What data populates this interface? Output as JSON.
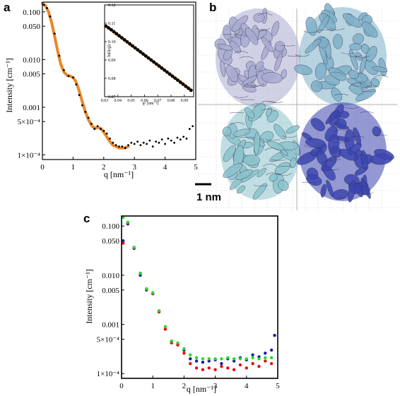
{
  "panels": {
    "a": {
      "letter": "a",
      "chart_data": {
        "type": "scatter",
        "title": "",
        "xlabel": "q [nm⁻¹]",
        "ylabel": "Intensity [cm⁻¹]",
        "xlim": [
          0,
          5
        ],
        "ylim": [
          8e-05,
          0.16
        ],
        "yscale": "log",
        "xticks": [
          {
            "value": 0,
            "label": "0"
          },
          {
            "value": 1,
            "label": "1"
          },
          {
            "value": 2,
            "label": "2"
          },
          {
            "value": 3,
            "label": "3"
          },
          {
            "value": 4,
            "label": "4"
          },
          {
            "value": 5,
            "label": "5"
          }
        ],
        "yticks": [
          {
            "value": 0.1,
            "label": "0.100"
          },
          {
            "value": 0.05,
            "label": "0.050"
          },
          {
            "value": 0.01,
            "label": "0.010"
          },
          {
            "value": 0.005,
            "label": "0.005"
          },
          {
            "value": 0.001,
            "label": "0.001"
          },
          {
            "value": 0.0005,
            "label": "5×10⁻⁴"
          },
          {
            "value": 0.0001,
            "label": "1×10⁻⁴"
          }
        ],
        "series": [
          {
            "kind": "points",
            "color": "#000000",
            "x": [
              0.05,
              0.15,
              0.25,
              0.4,
              0.55,
              0.7,
              0.85,
              1.0,
              1.1,
              1.2,
              1.3,
              1.4,
              1.5,
              1.6,
              1.7,
              1.8,
              1.9,
              2.0,
              2.1,
              2.2,
              2.3,
              2.4,
              2.5,
              2.6,
              2.7,
              2.8,
              2.9,
              3.0,
              3.1,
              3.2,
              3.3,
              3.4,
              3.5,
              3.6,
              3.7,
              3.8,
              3.9,
              4.0,
              4.1,
              4.2,
              4.3,
              4.4,
              4.5,
              4.6,
              4.7,
              4.8,
              4.9
            ],
            "y": [
              0.14,
              0.12,
              0.08,
              0.035,
              0.012,
              0.006,
              0.0045,
              0.0042,
              0.003,
              0.0018,
              0.0011,
              0.0008,
              0.0006,
              0.00045,
              0.00035,
              0.0004,
              0.00035,
              0.00032,
              0.00028,
              0.00022,
              0.00018,
              0.00016,
              0.00015,
              0.00015,
              0.00014,
              0.00016,
              0.00018,
              0.00017,
              0.00019,
              0.00016,
              0.00018,
              0.00017,
              0.0002,
              0.00015,
              0.00019,
              0.00018,
              0.00021,
              0.00017,
              0.00022,
              0.0002,
              0.00018,
              0.00023,
              0.00021,
              0.00024,
              0.00022,
              0.00035,
              0.0004
            ]
          },
          {
            "kind": "fit",
            "color": "#e8862a",
            "x": [
              0.0,
              0.1,
              0.2,
              0.3,
              0.4,
              0.5,
              0.6,
              0.7,
              0.8,
              0.9,
              1.0,
              1.1,
              1.2,
              1.3,
              1.4,
              1.5,
              1.6,
              1.7,
              1.8,
              1.9,
              2.0,
              2.1,
              2.2,
              2.3,
              2.4,
              2.5,
              2.6,
              2.7,
              2.8
            ],
            "y": [
              0.15,
              0.135,
              0.1,
              0.06,
              0.03,
              0.015,
              0.008,
              0.0055,
              0.0047,
              0.0045,
              0.0042,
              0.0034,
              0.0022,
              0.0013,
              0.0008,
              0.00055,
              0.00042,
              0.00036,
              0.00038,
              0.00036,
              0.0003,
              0.00024,
              0.00019,
              0.00016,
              0.00015,
              0.00014,
              0.00014,
              0.00014,
              0.00015
            ]
          }
        ]
      },
      "inset": {
        "chart_data": {
          "type": "scatter",
          "title": "",
          "xlabel": "q² [nm⁻²]",
          "ylabel": "ln(I(q))",
          "xlim": [
            0.03,
            0.097
          ],
          "ylim": [
            0.07,
            0.12
          ],
          "xticks": [
            {
              "value": 0.03,
              "label": "0.03"
            },
            {
              "value": 0.04,
              "label": "0.04"
            },
            {
              "value": 0.05,
              "label": "0.05"
            },
            {
              "value": 0.06,
              "label": "0.06"
            },
            {
              "value": 0.07,
              "label": "0.07"
            },
            {
              "value": 0.08,
              "label": "0.08"
            },
            {
              "value": 0.09,
              "label": "0.09"
            }
          ],
          "yticks": [
            {
              "value": 0.12,
              "label": "0.12"
            },
            {
              "value": 0.11,
              "label": "0.11"
            },
            {
              "value": 0.1,
              "label": "0.10"
            },
            {
              "value": 0.09,
              "label": "0.09"
            },
            {
              "value": 0.08,
              "label": "0.08"
            },
            {
              "value": 0.07,
              "label": "0.07"
            }
          ],
          "points": {
            "color": "#000000",
            "x": [
              0.031,
              0.033,
              0.035,
              0.037,
              0.039,
              0.041,
              0.043,
              0.045,
              0.047,
              0.049,
              0.051,
              0.053,
              0.055,
              0.057,
              0.059,
              0.061,
              0.063,
              0.065,
              0.067,
              0.069,
              0.071,
              0.073,
              0.075,
              0.077,
              0.079,
              0.081,
              0.083,
              0.085,
              0.087,
              0.089,
              0.091,
              0.093,
              0.095
            ],
            "y": [
              0.1085,
              0.1075,
              0.1065,
              0.1054,
              0.1043,
              0.1032,
              0.1021,
              0.101,
              0.0999,
              0.0988,
              0.0977,
              0.0966,
              0.0955,
              0.0944,
              0.0933,
              0.0922,
              0.0911,
              0.09,
              0.0889,
              0.0878,
              0.0867,
              0.0856,
              0.0845,
              0.0834,
              0.0823,
              0.0812,
              0.0801,
              0.079,
              0.0779,
              0.0768,
              0.0757,
              0.0746,
              0.0735
            ]
          },
          "fit": {
            "color": "#e8862a",
            "x": [
              0.03,
              0.096
            ],
            "y": [
              0.109,
              0.0732
            ]
          }
        }
      }
    },
    "b": {
      "letter": "b",
      "scale_bar_label": "1 nm",
      "colors": {
        "top_left": "#a9acd0",
        "top_right": "#7fb0c8",
        "bottom_left": "#8cc3cc",
        "bottom_right": "#3c46b0"
      }
    },
    "c": {
      "letter": "c",
      "chart_data": {
        "type": "scatter",
        "title": "",
        "xlabel": "q [nm⁻¹]",
        "ylabel": "Intensity [cm⁻¹]",
        "xlim": [
          0,
          5
        ],
        "ylim": [
          8e-05,
          0.16
        ],
        "yscale": "log",
        "xticks": [
          {
            "value": 0,
            "label": "0"
          },
          {
            "value": 1,
            "label": "1"
          },
          {
            "value": 2,
            "label": "2"
          },
          {
            "value": 3,
            "label": "3"
          },
          {
            "value": 4,
            "label": "4"
          },
          {
            "value": 5,
            "label": "5"
          }
        ],
        "yticks": [
          {
            "value": 0.1,
            "label": "0.100"
          },
          {
            "value": 0.05,
            "label": "0.050"
          },
          {
            "value": 0.01,
            "label": "0.010"
          },
          {
            "value": 0.005,
            "label": "0.005"
          },
          {
            "value": 0.001,
            "label": "0.001"
          },
          {
            "value": 0.0005,
            "label": "5×10⁻⁴"
          },
          {
            "value": 0.0001,
            "label": "1×10⁻⁴"
          }
        ],
        "series": [
          {
            "color": "#1a1aa8",
            "x": [
              0.05,
              0.2,
              0.4,
              0.6,
              0.8,
              1.0,
              1.2,
              1.4,
              1.6,
              1.8,
              2.0,
              2.2,
              2.4,
              2.6,
              2.8,
              3.0,
              3.2,
              3.4,
              3.6,
              3.8,
              4.0,
              4.2,
              4.4,
              4.6,
              4.8,
              4.9
            ],
            "y": [
              0.05,
              0.11,
              0.035,
              0.01,
              0.005,
              0.0043,
              0.0018,
              0.0008,
              0.00045,
              0.0004,
              0.0003,
              0.0002,
              0.00018,
              0.00017,
              0.00018,
              0.00019,
              0.00016,
              0.0002,
              0.00018,
              0.00021,
              0.00019,
              0.00024,
              0.00022,
              0.00026,
              0.0003,
              0.0006
            ]
          },
          {
            "color": "#e01010",
            "x": [
              0.05,
              0.2,
              0.4,
              0.6,
              0.8,
              1.0,
              1.2,
              1.4,
              1.6,
              1.8,
              2.0,
              2.2,
              2.4,
              2.6,
              2.8,
              3.0,
              3.2,
              3.4,
              3.6,
              3.8,
              4.0,
              4.2,
              4.4,
              4.6,
              4.8
            ],
            "y": [
              0.045,
              0.115,
              0.036,
              0.011,
              0.0052,
              0.0042,
              0.0018,
              0.0008,
              0.00042,
              0.00038,
              0.00026,
              0.00016,
              0.00013,
              0.00012,
              0.00013,
              0.00012,
              0.00014,
              0.00013,
              0.00012,
              0.00015,
              0.00013,
              0.00016,
              0.00014,
              0.00018,
              0.00016
            ]
          },
          {
            "color": "#22dd22",
            "x": [
              0.05,
              0.2,
              0.4,
              0.6,
              0.8,
              1.0,
              1.2,
              1.4,
              1.6,
              1.8,
              2.0,
              2.2,
              2.4,
              2.6,
              2.8,
              3.0,
              3.2,
              3.4,
              3.6,
              3.8,
              4.0,
              4.2,
              4.4,
              4.6,
              4.8
            ],
            "y": [
              0.15,
              0.12,
              0.037,
              0.011,
              0.0053,
              0.0044,
              0.0019,
              0.0009,
              0.00046,
              0.00042,
              0.00032,
              0.00024,
              0.00021,
              0.0002,
              0.0002,
              0.0002,
              0.0002,
              0.00021,
              0.0002,
              0.0002,
              0.0002,
              0.00021,
              0.0002,
              0.00021,
              0.00021
            ]
          }
        ]
      }
    }
  }
}
